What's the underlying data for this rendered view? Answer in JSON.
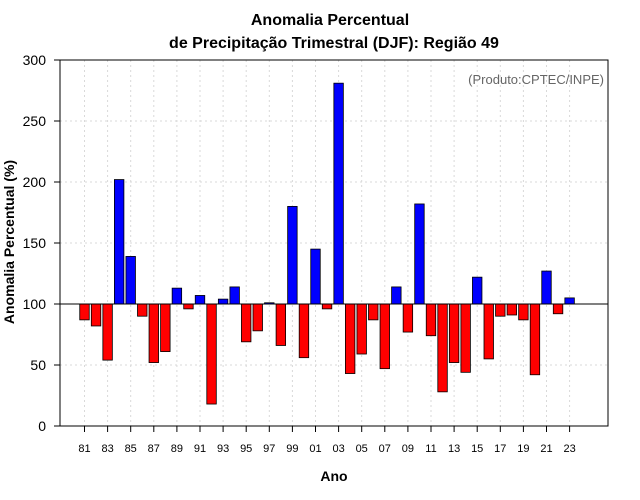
{
  "colors": {
    "positive": "#0000ff",
    "negative": "#ff0000",
    "grid": "#d9d9d9",
    "baseline": "#000000"
  },
  "chart_data": {
    "type": "bar",
    "title_line1": "Anomalia Percentual",
    "title_line2": "de Precipitação Trimestral (DJF): Região 49",
    "credit": "(Produto:CPTEC/INPE)",
    "xlabel": "Ano",
    "ylabel": "Anomalia Percentual (%)",
    "ylim": [
      0,
      300
    ],
    "yticks": [
      0,
      50,
      100,
      150,
      200,
      250,
      300
    ],
    "baseline": 100,
    "grid": true,
    "categories": [
      "81",
      "82",
      "83",
      "84",
      "85",
      "86",
      "87",
      "88",
      "89",
      "90",
      "91",
      "92",
      "93",
      "94",
      "95",
      "96",
      "97",
      "98",
      "99",
      "00",
      "01",
      "02",
      "03",
      "04",
      "05",
      "06",
      "07",
      "08",
      "09",
      "10",
      "11",
      "12",
      "13",
      "14",
      "15",
      "16",
      "17",
      "18",
      "19",
      "20",
      "21",
      "22",
      "23"
    ],
    "tick_labels": [
      "81",
      "83",
      "85",
      "87",
      "89",
      "91",
      "93",
      "95",
      "97",
      "99",
      "01",
      "03",
      "05",
      "07",
      "09",
      "11",
      "13",
      "15",
      "17",
      "19",
      "21",
      "23"
    ],
    "values": [
      87,
      82,
      54,
      202,
      139,
      90,
      52,
      61,
      113,
      96,
      107,
      18,
      104,
      114,
      69,
      78,
      101,
      66,
      180,
      56,
      145,
      96,
      281,
      43,
      59,
      87,
      47,
      114,
      77,
      182,
      74,
      28,
      52,
      44,
      122,
      55,
      90,
      91,
      87,
      42,
      127,
      92,
      105
    ]
  }
}
